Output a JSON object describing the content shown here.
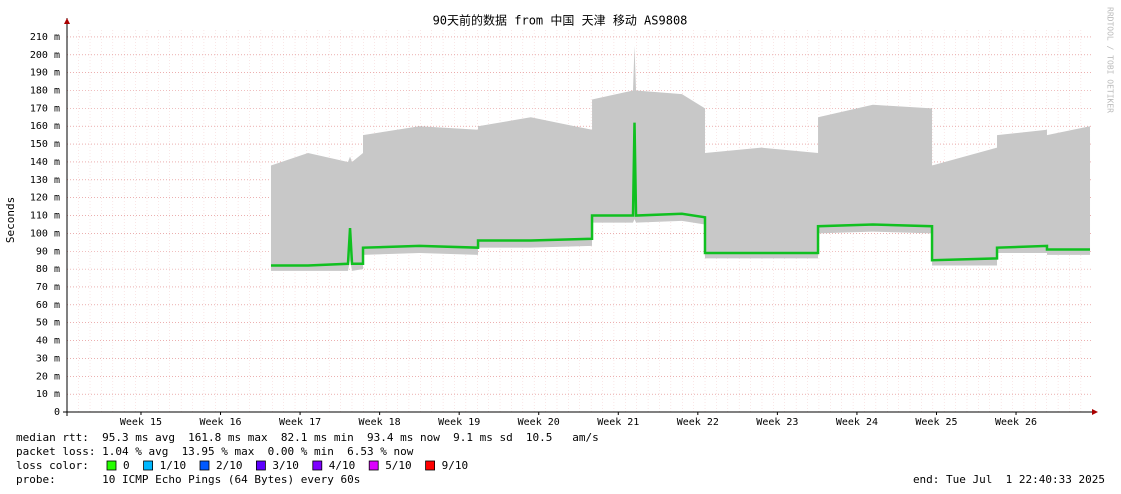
{
  "chart_data": {
    "type": "line",
    "title": "90天前的数据 from 中国 天津 移动 AS9808",
    "y_label": "Seconds",
    "side_label": "RRDTOOL / TOBI OETIKER",
    "ylim": [
      0,
      0.215
    ],
    "yticks": [
      0,
      {
        "value": 0.01,
        "label": "10 m"
      },
      {
        "value": 0.02,
        "label": "20 m"
      },
      {
        "value": 0.03,
        "label": "30 m"
      },
      {
        "value": 0.04,
        "label": "40 m"
      },
      {
        "value": 0.05,
        "label": "50 m"
      },
      {
        "value": 0.06,
        "label": "60 m"
      },
      {
        "value": 0.07,
        "label": "70 m"
      },
      {
        "value": 0.08,
        "label": "80 m"
      },
      {
        "value": 0.09,
        "label": "90 m"
      },
      {
        "value": 0.1,
        "label": "100 m"
      },
      {
        "value": 0.11,
        "label": "110 m"
      },
      {
        "value": 0.12,
        "label": "120 m"
      },
      {
        "value": 0.13,
        "label": "130 m"
      },
      {
        "value": 0.14,
        "label": "140 m"
      },
      {
        "value": 0.15,
        "label": "150 m"
      },
      {
        "value": 0.16,
        "label": "160 m"
      },
      {
        "value": 0.17,
        "label": "170 m"
      },
      {
        "value": 0.18,
        "label": "180 m"
      },
      {
        "value": 0.19,
        "label": "190 m"
      },
      {
        "value": 0.2,
        "label": "200 m"
      },
      {
        "value": 0.21,
        "label": "210 m"
      }
    ],
    "xlim": [
      14.07,
      26.955
    ],
    "xticks": [
      {
        "value": 15,
        "label": "Week 15"
      },
      {
        "value": 16,
        "label": "Week 16"
      },
      {
        "value": 17,
        "label": "Week 17"
      },
      {
        "value": 18,
        "label": "Week 18"
      },
      {
        "value": 19,
        "label": "Week 19"
      },
      {
        "value": 20,
        "label": "Week 20"
      },
      {
        "value": 21,
        "label": "Week 21"
      },
      {
        "value": 22,
        "label": "Week 22"
      },
      {
        "value": 23,
        "label": "Week 23"
      },
      {
        "value": 24,
        "label": "Week 24"
      },
      {
        "value": 25,
        "label": "Week 25"
      },
      {
        "value": 26,
        "label": "Week 26"
      }
    ],
    "grid": true,
    "x": [
      16.634,
      17.1,
      17.602,
      17.628,
      17.653,
      17.791,
      17.791,
      18.5,
      19.237,
      19.237,
      19.9,
      20.67,
      20.67,
      21.185,
      21.204,
      21.223,
      21.8,
      22.09,
      22.09,
      22.8,
      23.511,
      23.511,
      24.2,
      24.944,
      24.944,
      25.761,
      25.761,
      26.389,
      26.389,
      26.93
    ],
    "band": {
      "color": "#c8c8c8",
      "low": [
        0.079,
        0.079,
        0.079,
        0.085,
        0.079,
        0.08,
        0.088,
        0.089,
        0.088,
        0.092,
        0.092,
        0.093,
        0.106,
        0.106,
        0.108,
        0.106,
        0.107,
        0.105,
        0.086,
        0.086,
        0.086,
        0.1,
        0.101,
        0.1,
        0.082,
        0.082,
        0.089,
        0.089,
        0.088,
        0.088
      ],
      "high": [
        0.138,
        0.145,
        0.14,
        0.143,
        0.14,
        0.145,
        0.155,
        0.16,
        0.158,
        0.16,
        0.165,
        0.158,
        0.175,
        0.18,
        0.205,
        0.18,
        0.178,
        0.17,
        0.145,
        0.148,
        0.145,
        0.165,
        0.172,
        0.17,
        0.138,
        0.148,
        0.155,
        0.158,
        0.155,
        0.16
      ]
    },
    "series": [
      {
        "color": "#10c020",
        "values": [
          0.082,
          0.082,
          0.083,
          0.103,
          0.083,
          0.083,
          0.092,
          0.093,
          0.092,
          0.096,
          0.096,
          0.097,
          0.11,
          0.11,
          0.162,
          0.11,
          0.111,
          0.109,
          0.089,
          0.089,
          0.089,
          0.104,
          0.105,
          0.104,
          0.085,
          0.086,
          0.092,
          0.093,
          0.091,
          0.091
        ]
      }
    ],
    "footer": {
      "median_rtt": "median rtt:  95.3 ms avg  161.8 ms max  82.1 ms min  93.4 ms now  9.1 ms sd  10.5   am/s",
      "packet_loss": "packet loss: 1.04 % avg  13.95 % max  0.00 % min  6.53 % now",
      "loss_label": "loss color:",
      "loss_colors": [
        {
          "label": "0",
          "color": "#26ff00"
        },
        {
          "label": "1/10",
          "color": "#00b8ff"
        },
        {
          "label": "2/10",
          "color": "#0059ff"
        },
        {
          "label": "3/10",
          "color": "#5e00ff"
        },
        {
          "label": "4/10",
          "color": "#7e00ff"
        },
        {
          "label": "5/10",
          "color": "#dd00ff"
        },
        {
          "label": "9/10",
          "color": "#ff0000"
        }
      ],
      "probe": "probe:       10 ICMP Echo Pings (64 Bytes) every 60s",
      "end": "end: Tue Jul  1 22:40:33 2025"
    }
  }
}
